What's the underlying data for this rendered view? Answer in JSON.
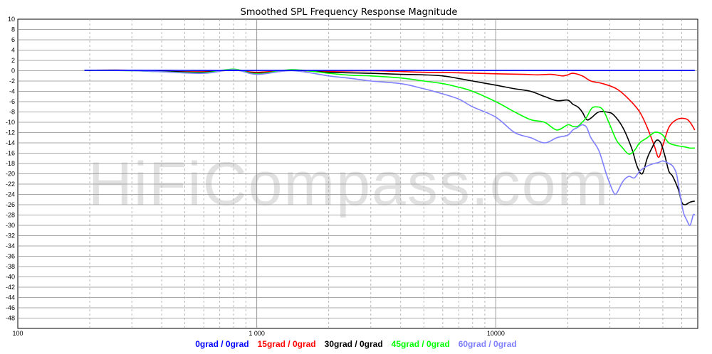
{
  "colors": {
    "background": "#ffffff",
    "grid_major": "#8c8c8c",
    "grid_minor": "#a8a8a8",
    "watermark": "#c8c8c8"
  },
  "watermark_text": "HiFiCompass.com",
  "chart_data": {
    "type": "line",
    "title": "Smoothed SPL Frequency Response Magnitude",
    "xlabel": "",
    "ylabel": "",
    "x_scale": "log",
    "xlim": [
      100,
      70000
    ],
    "ylim": [
      -50,
      10
    ],
    "x_tick_labels": [
      {
        "value": 100,
        "label": "100"
      },
      {
        "value": 1000,
        "label": "1 000"
      },
      {
        "value": 10000,
        "label": "10000"
      }
    ],
    "y_ticks": [
      10,
      8,
      6,
      4,
      2,
      0,
      -2,
      -4,
      -6,
      -8,
      -10,
      -12,
      -14,
      -16,
      -18,
      -20,
      -22,
      -24,
      -26,
      -28,
      -30,
      -32,
      -34,
      -36,
      -38,
      -40,
      -42,
      -44,
      -46,
      -48
    ],
    "grid": true,
    "legend_position": "bottom-center",
    "series": [
      {
        "name": "0grad / 0grad",
        "color": "#0000ff",
        "points": [
          [
            190,
            0.1
          ],
          [
            300,
            0.1
          ],
          [
            600,
            0.05
          ],
          [
            1000,
            0.05
          ],
          [
            3000,
            0.05
          ],
          [
            10000,
            0.05
          ],
          [
            30000,
            0.05
          ],
          [
            68000,
            0.05
          ]
        ]
      },
      {
        "name": "15grad / 0grad",
        "color": "#ff0000",
        "points": [
          [
            190,
            0.1
          ],
          [
            300,
            0.1
          ],
          [
            400,
            -0.1
          ],
          [
            600,
            -0.2
          ],
          [
            800,
            0.1
          ],
          [
            1000,
            -0.3
          ],
          [
            1400,
            0.1
          ],
          [
            2000,
            -0.1
          ],
          [
            3000,
            0
          ],
          [
            5000,
            -0.3
          ],
          [
            7000,
            -0.4
          ],
          [
            10000,
            -0.6
          ],
          [
            13000,
            -0.7
          ],
          [
            15000,
            -0.8
          ],
          [
            17000,
            -0.7
          ],
          [
            19000,
            -1.0
          ],
          [
            20000,
            -0.8
          ],
          [
            21000,
            -0.5
          ],
          [
            23000,
            -1.0
          ],
          [
            25000,
            -2.0
          ],
          [
            28000,
            -2.5
          ],
          [
            32000,
            -3.5
          ],
          [
            36000,
            -5.5
          ],
          [
            40000,
            -8.0
          ],
          [
            43000,
            -11.0
          ],
          [
            46000,
            -14.5
          ],
          [
            48000,
            -16.8
          ],
          [
            50000,
            -14.5
          ],
          [
            53000,
            -11.0
          ],
          [
            57000,
            -9.5
          ],
          [
            62000,
            -9.3
          ],
          [
            65000,
            -10.0
          ],
          [
            68000,
            -11.5
          ]
        ]
      },
      {
        "name": "30grad / 0grad",
        "color": "#000000",
        "points": [
          [
            190,
            0.1
          ],
          [
            300,
            0.1
          ],
          [
            400,
            -0.1
          ],
          [
            600,
            -0.3
          ],
          [
            800,
            0.2
          ],
          [
            1000,
            -0.5
          ],
          [
            1400,
            0.1
          ],
          [
            2000,
            -0.3
          ],
          [
            3000,
            -0.5
          ],
          [
            4000,
            -0.7
          ],
          [
            5000,
            -0.8
          ],
          [
            6000,
            -1.0
          ],
          [
            7000,
            -1.5
          ],
          [
            8000,
            -2.0
          ],
          [
            10000,
            -2.8
          ],
          [
            12000,
            -3.5
          ],
          [
            14000,
            -4.0
          ],
          [
            16000,
            -5.0
          ],
          [
            18000,
            -5.8
          ],
          [
            20000,
            -5.7
          ],
          [
            21000,
            -6.5
          ],
          [
            22000,
            -7.0
          ],
          [
            23000,
            -8.0
          ],
          [
            24000,
            -9.5
          ],
          [
            25000,
            -9.2
          ],
          [
            26000,
            -8.5
          ],
          [
            27000,
            -8.0
          ],
          [
            29000,
            -8.0
          ],
          [
            31000,
            -8.5
          ],
          [
            34000,
            -11.0
          ],
          [
            37000,
            -15.0
          ],
          [
            39000,
            -18.5
          ],
          [
            41000,
            -20.0
          ],
          [
            43000,
            -17.0
          ],
          [
            45000,
            -15.0
          ],
          [
            47000,
            -13.5
          ],
          [
            49000,
            -14.0
          ],
          [
            51000,
            -16.5
          ],
          [
            53000,
            -19.5
          ],
          [
            55000,
            -20.5
          ],
          [
            58000,
            -23.0
          ],
          [
            60000,
            -25.5
          ],
          [
            62000,
            -26.0
          ],
          [
            65000,
            -25.5
          ],
          [
            68000,
            -25.3
          ]
        ]
      },
      {
        "name": "45grad / 0grad",
        "color": "#00ff00",
        "points": [
          [
            190,
            0.1
          ],
          [
            300,
            0.0
          ],
          [
            400,
            -0.2
          ],
          [
            600,
            -0.4
          ],
          [
            800,
            0.3
          ],
          [
            1000,
            -0.6
          ],
          [
            1400,
            0.2
          ],
          [
            2000,
            -0.5
          ],
          [
            2500,
            -0.9
          ],
          [
            3000,
            -1.0
          ],
          [
            4000,
            -1.4
          ],
          [
            5000,
            -2.0
          ],
          [
            6000,
            -2.5
          ],
          [
            7000,
            -3.2
          ],
          [
            8000,
            -4.0
          ],
          [
            10000,
            -6.0
          ],
          [
            12000,
            -8.0
          ],
          [
            14000,
            -9.5
          ],
          [
            16000,
            -10.0
          ],
          [
            18000,
            -11.5
          ],
          [
            20000,
            -10.5
          ],
          [
            21000,
            -10.8
          ],
          [
            22000,
            -10.8
          ],
          [
            23000,
            -10.0
          ],
          [
            24000,
            -9.0
          ],
          [
            25000,
            -7.5
          ],
          [
            26000,
            -7.0
          ],
          [
            28000,
            -7.5
          ],
          [
            30000,
            -10.5
          ],
          [
            32000,
            -13.5
          ],
          [
            34000,
            -15.0
          ],
          [
            36000,
            -16.2
          ],
          [
            38000,
            -15.5
          ],
          [
            40000,
            -14.0
          ],
          [
            43000,
            -13.0
          ],
          [
            46000,
            -12.0
          ],
          [
            48000,
            -12.0
          ],
          [
            50000,
            -12.5
          ],
          [
            53000,
            -14.0
          ],
          [
            57000,
            -14.5
          ],
          [
            62000,
            -14.8
          ],
          [
            65000,
            -15.0
          ],
          [
            68000,
            -15.0
          ]
        ]
      },
      {
        "name": "60grad / 0grad",
        "color": "#8080ff",
        "points": [
          [
            190,
            0.1
          ],
          [
            300,
            0.0
          ],
          [
            400,
            -0.2
          ],
          [
            600,
            -0.5
          ],
          [
            800,
            0.2
          ],
          [
            1000,
            -0.7
          ],
          [
            1400,
            0.0
          ],
          [
            2000,
            -1.0
          ],
          [
            2500,
            -1.5
          ],
          [
            3000,
            -2.0
          ],
          [
            4000,
            -2.5
          ],
          [
            5000,
            -3.5
          ],
          [
            6000,
            -4.5
          ],
          [
            7000,
            -5.5
          ],
          [
            8000,
            -7.0
          ],
          [
            10000,
            -9.0
          ],
          [
            12000,
            -12.0
          ],
          [
            14000,
            -13.0
          ],
          [
            16000,
            -14.0
          ],
          [
            18000,
            -13.0
          ],
          [
            20000,
            -12.5
          ],
          [
            21000,
            -11.5
          ],
          [
            22000,
            -11.0
          ],
          [
            23000,
            -10.5
          ],
          [
            24000,
            -11.0
          ],
          [
            25000,
            -13.0
          ],
          [
            27000,
            -15.5
          ],
          [
            29000,
            -20.0
          ],
          [
            31000,
            -23.5
          ],
          [
            32000,
            -23.8
          ],
          [
            34000,
            -21.5
          ],
          [
            36000,
            -20.5
          ],
          [
            38000,
            -20.8
          ],
          [
            40000,
            -19.5
          ],
          [
            43000,
            -18.5
          ],
          [
            46000,
            -18.0
          ],
          [
            48000,
            -17.8
          ],
          [
            50000,
            -17.5
          ],
          [
            53000,
            -18.0
          ],
          [
            55000,
            -18.5
          ],
          [
            57000,
            -20.0
          ],
          [
            59000,
            -24.0
          ],
          [
            61000,
            -27.5
          ],
          [
            63000,
            -29.0
          ],
          [
            65000,
            -30.0
          ],
          [
            67000,
            -28.0
          ],
          [
            68000,
            -28.0
          ]
        ]
      }
    ]
  }
}
